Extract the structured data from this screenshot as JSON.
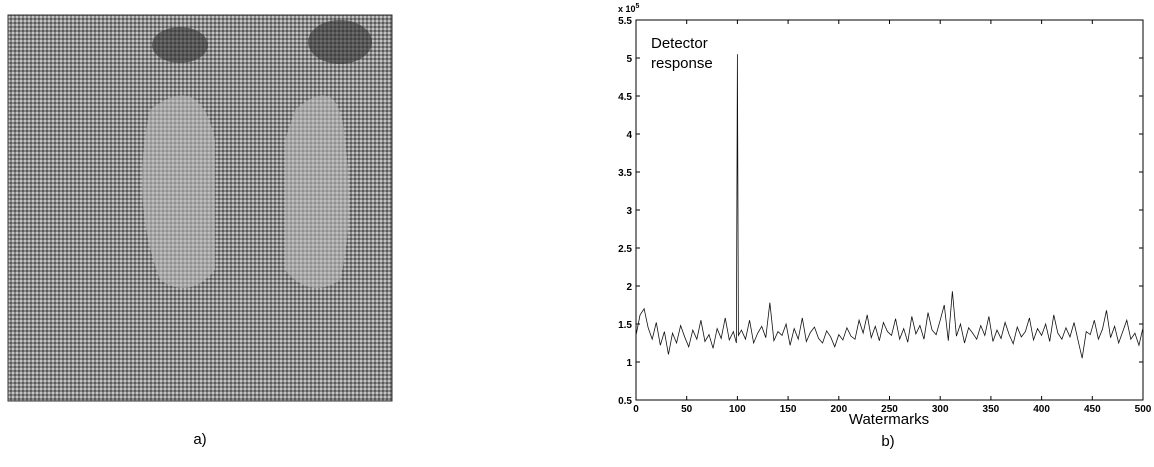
{
  "figure": {
    "caption_a": "a)",
    "caption_b": "b)"
  },
  "chart_data": {
    "type": "line",
    "xlabel": "Watermarks",
    "y_multiplier": "x 10",
    "y_multiplier_exp": "5",
    "annotation": [
      "Detector",
      "response"
    ],
    "xlim": [
      0,
      500
    ],
    "xticks": [
      0,
      50,
      100,
      150,
      200,
      250,
      300,
      350,
      400,
      450,
      500
    ],
    "ylim": [
      0.5,
      5.5
    ],
    "yticks": [
      0.5,
      1,
      1.5,
      2,
      2.5,
      3,
      3.5,
      4,
      4.5,
      5,
      5.5
    ],
    "x": [
      0,
      4,
      8,
      12,
      16,
      20,
      24,
      28,
      32,
      36,
      40,
      44,
      48,
      52,
      56,
      60,
      64,
      68,
      72,
      76,
      80,
      84,
      88,
      92,
      96,
      99,
      100,
      101,
      104,
      108,
      112,
      116,
      120,
      124,
      128,
      132,
      136,
      140,
      144,
      148,
      152,
      156,
      160,
      164,
      168,
      172,
      176,
      180,
      184,
      188,
      192,
      196,
      200,
      204,
      208,
      212,
      216,
      220,
      224,
      228,
      232,
      236,
      240,
      244,
      248,
      252,
      256,
      260,
      264,
      268,
      272,
      276,
      280,
      284,
      288,
      292,
      296,
      300,
      304,
      308,
      312,
      316,
      320,
      324,
      328,
      332,
      336,
      340,
      344,
      348,
      352,
      356,
      360,
      364,
      368,
      372,
      376,
      380,
      384,
      388,
      392,
      396,
      400,
      404,
      408,
      412,
      416,
      420,
      424,
      428,
      432,
      436,
      440,
      444,
      448,
      452,
      456,
      460,
      464,
      468,
      472,
      476,
      480,
      484,
      488,
      492,
      496,
      500
    ],
    "series": [
      {
        "color": "#111111",
        "values": [
          1.35,
          1.62,
          1.7,
          1.45,
          1.3,
          1.52,
          1.22,
          1.4,
          1.1,
          1.38,
          1.25,
          1.48,
          1.33,
          1.2,
          1.42,
          1.3,
          1.55,
          1.27,
          1.36,
          1.18,
          1.44,
          1.31,
          1.58,
          1.29,
          1.4,
          1.25,
          5.05,
          1.35,
          1.42,
          1.3,
          1.55,
          1.25,
          1.38,
          1.47,
          1.32,
          1.78,
          1.28,
          1.4,
          1.35,
          1.5,
          1.22,
          1.44,
          1.3,
          1.58,
          1.27,
          1.39,
          1.46,
          1.31,
          1.25,
          1.41,
          1.33,
          1.2,
          1.36,
          1.29,
          1.45,
          1.34,
          1.3,
          1.55,
          1.38,
          1.62,
          1.32,
          1.47,
          1.28,
          1.52,
          1.4,
          1.35,
          1.57,
          1.3,
          1.44,
          1.26,
          1.6,
          1.37,
          1.48,
          1.3,
          1.65,
          1.42,
          1.36,
          1.55,
          1.75,
          1.28,
          1.93,
          1.34,
          1.5,
          1.25,
          1.45,
          1.38,
          1.3,
          1.48,
          1.35,
          1.6,
          1.27,
          1.42,
          1.31,
          1.52,
          1.36,
          1.24,
          1.46,
          1.33,
          1.4,
          1.58,
          1.29,
          1.44,
          1.35,
          1.5,
          1.27,
          1.62,
          1.38,
          1.3,
          1.45,
          1.33,
          1.52,
          1.28,
          1.05,
          1.4,
          1.36,
          1.55,
          1.3,
          1.43,
          1.68,
          1.32,
          1.47,
          1.25,
          1.4,
          1.55,
          1.3,
          1.38,
          1.22,
          1.45
        ]
      }
    ]
  }
}
